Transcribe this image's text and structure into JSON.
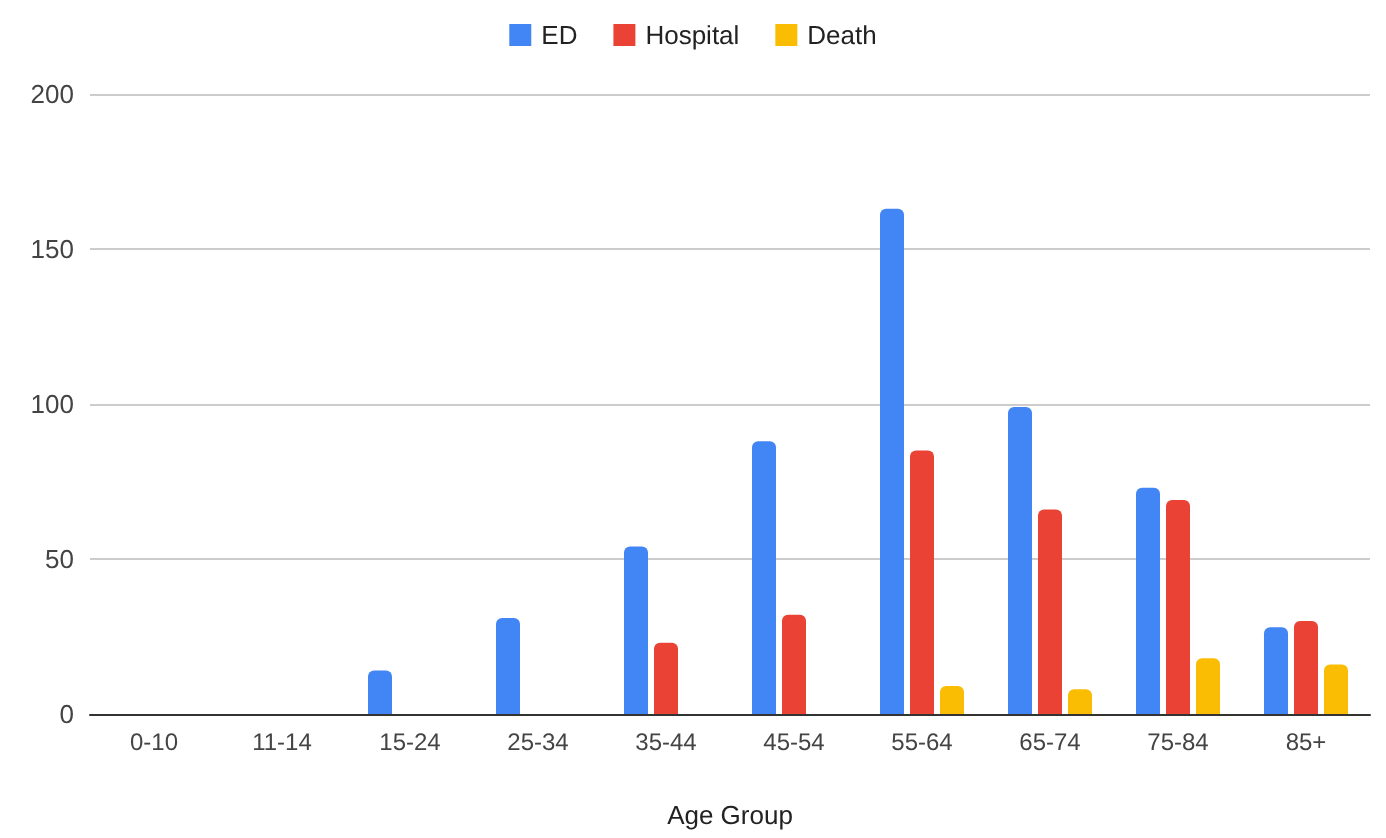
{
  "chart_data": {
    "type": "bar",
    "xlabel": "Age Group",
    "categories": [
      "0-10",
      "11-14",
      "15-24",
      "25-34",
      "35-44",
      "45-54",
      "55-64",
      "65-74",
      "75-84",
      "85+"
    ],
    "series": [
      {
        "name": "ED",
        "color": "#4285f4",
        "values": [
          0,
          0,
          14,
          31,
          54,
          88,
          163,
          99,
          73,
          28
        ]
      },
      {
        "name": "Hospital",
        "color": "#ea4335",
        "values": [
          0,
          0,
          0,
          0,
          23,
          32,
          85,
          66,
          69,
          30
        ]
      },
      {
        "name": "Death",
        "color": "#fbbc04",
        "values": [
          0,
          0,
          0,
          0,
          0,
          0,
          9,
          8,
          18,
          16
        ]
      }
    ],
    "ylim": [
      0,
      200
    ],
    "yticks": [
      0,
      50,
      100,
      150,
      200
    ],
    "grid": "y",
    "legend": "top"
  }
}
